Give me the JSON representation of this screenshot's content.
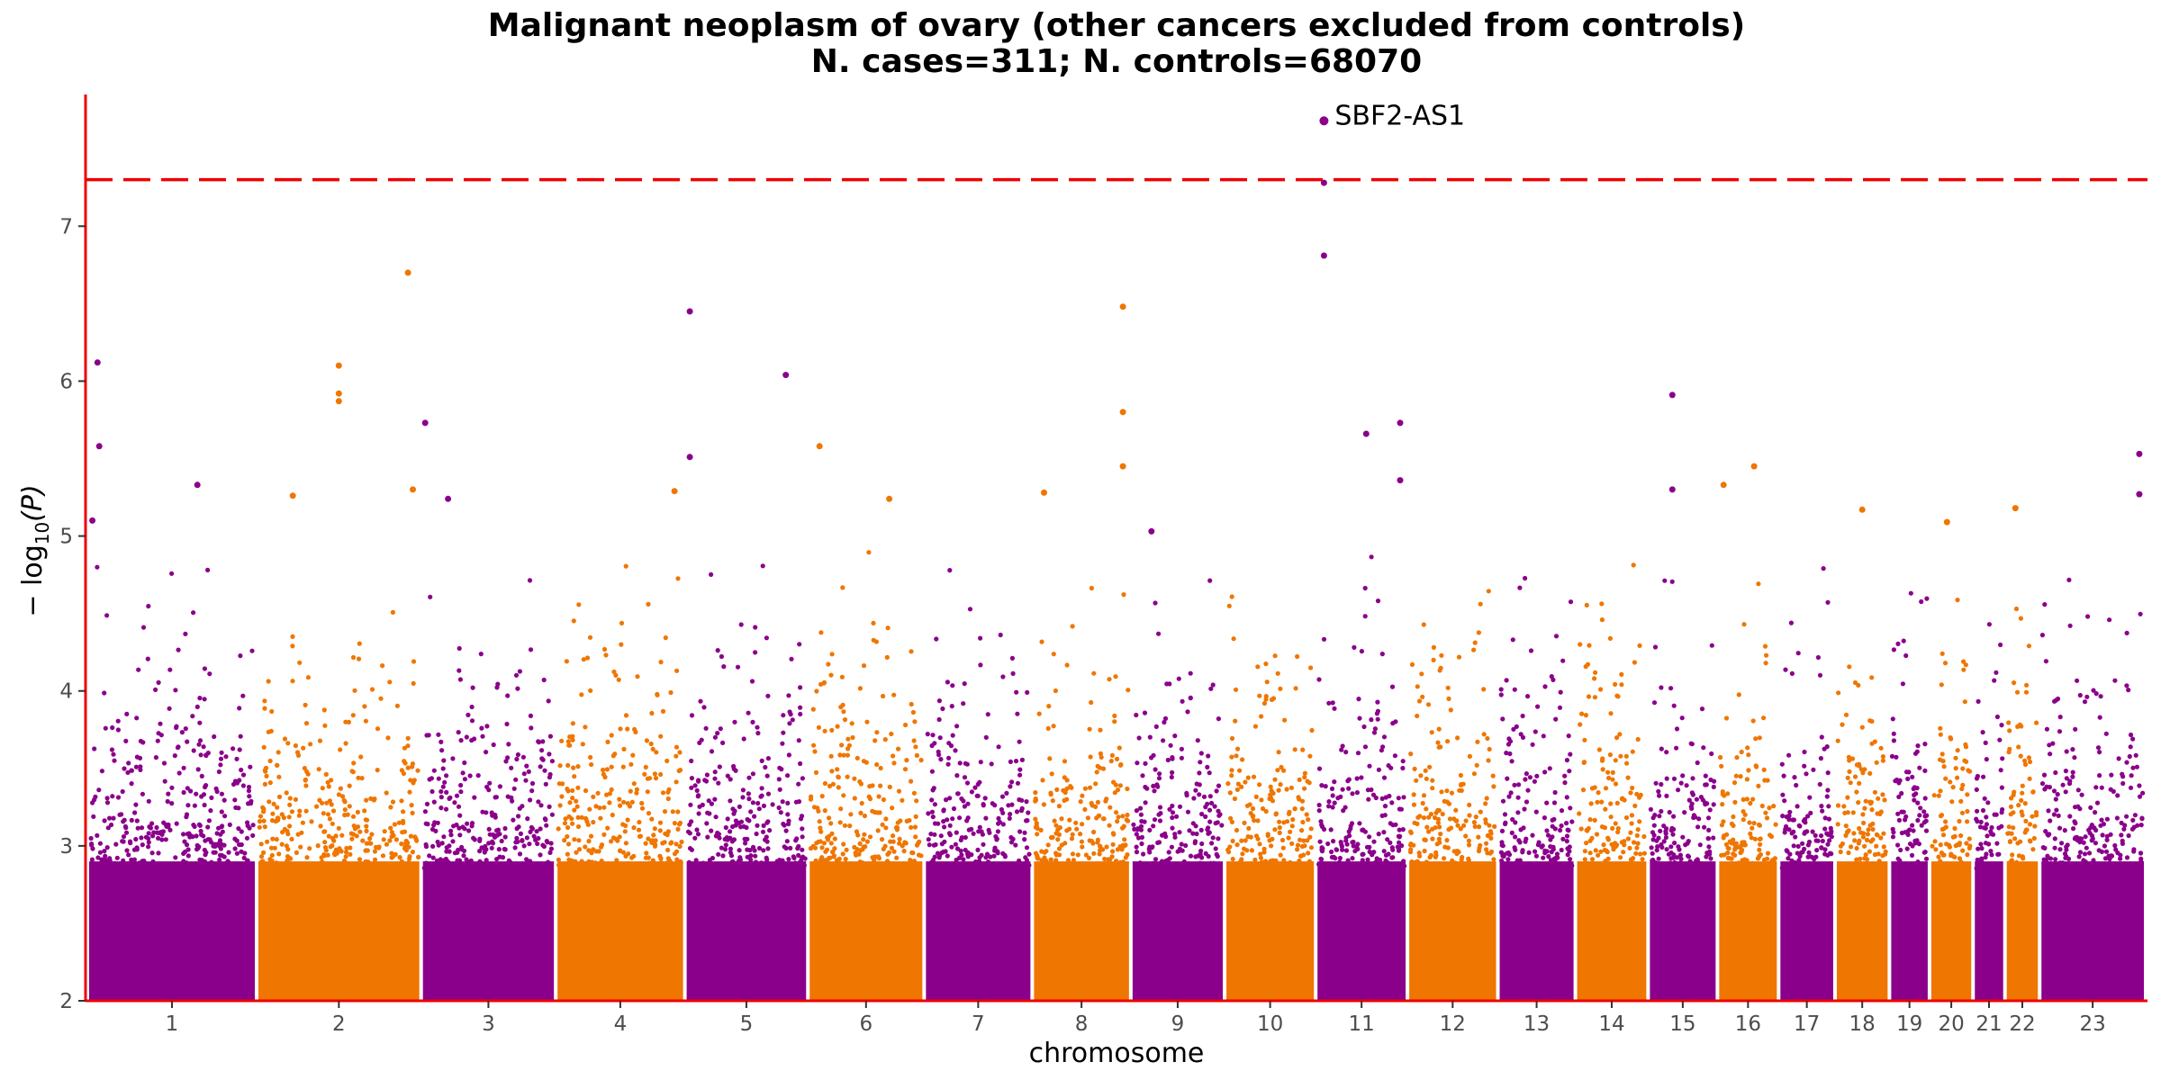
{
  "chart_data": {
    "type": "scatter",
    "subtype": "manhattan",
    "title": "Malignant neoplasm of ovary (other cancers excluded from controls)",
    "subtitle": "N. cases=311; N. controls=68070",
    "xlabel": "chromosome",
    "ylabel_main": "− log",
    "ylabel_sub": "10",
    "ylabel_var": "(P)",
    "ylim": [
      2,
      7.85
    ],
    "yticks": [
      2,
      3,
      4,
      5,
      6,
      7
    ],
    "significance_line": 7.3,
    "grid": false,
    "colors": {
      "odd": "#8b008b",
      "even": "#ef7600",
      "line": "#ee0000",
      "axis": "#ee0000"
    },
    "chromosomes": [
      {
        "label": "1",
        "length": 249
      },
      {
        "label": "2",
        "length": 242
      },
      {
        "label": "3",
        "length": 198
      },
      {
        "label": "4",
        "length": 190
      },
      {
        "label": "5",
        "length": 181
      },
      {
        "label": "6",
        "length": 171
      },
      {
        "label": "7",
        "length": 159
      },
      {
        "label": "8",
        "length": 145
      },
      {
        "label": "9",
        "length": 138
      },
      {
        "label": "10",
        "length": 134
      },
      {
        "label": "11",
        "length": 135
      },
      {
        "label": "12",
        "length": 133
      },
      {
        "label": "13",
        "length": 114
      },
      {
        "label": "14",
        "length": 107
      },
      {
        "label": "15",
        "length": 102
      },
      {
        "label": "16",
        "length": 90
      },
      {
        "label": "17",
        "length": 83
      },
      {
        "label": "18",
        "length": 80
      },
      {
        "label": "19",
        "length": 59
      },
      {
        "label": "20",
        "length": 64
      },
      {
        "label": "21",
        "length": 47
      },
      {
        "label": "22",
        "length": 51
      },
      {
        "label": "23",
        "length": 156
      }
    ],
    "top_hits": [
      {
        "chr": "1",
        "pos": 0.06,
        "p": 6.12
      },
      {
        "chr": "1",
        "pos": 0.07,
        "p": 5.58
      },
      {
        "chr": "1",
        "pos": 0.03,
        "p": 5.1
      },
      {
        "chr": "1",
        "pos": 0.65,
        "p": 5.33
      },
      {
        "chr": "2",
        "pos": 0.5,
        "p": 6.1
      },
      {
        "chr": "2",
        "pos": 0.5,
        "p": 5.92
      },
      {
        "chr": "2",
        "pos": 0.5,
        "p": 5.87
      },
      {
        "chr": "2",
        "pos": 0.22,
        "p": 5.26
      },
      {
        "chr": "2",
        "pos": 0.92,
        "p": 6.7
      },
      {
        "chr": "2",
        "pos": 0.95,
        "p": 5.3
      },
      {
        "chr": "3",
        "pos": 0.03,
        "p": 5.73
      },
      {
        "chr": "3",
        "pos": 0.2,
        "p": 5.24
      },
      {
        "chr": "4",
        "pos": 0.92,
        "p": 5.29
      },
      {
        "chr": "5",
        "pos": 0.04,
        "p": 6.45
      },
      {
        "chr": "5",
        "pos": 0.04,
        "p": 5.51
      },
      {
        "chr": "5",
        "pos": 0.82,
        "p": 6.04
      },
      {
        "chr": "6",
        "pos": 0.1,
        "p": 5.58
      },
      {
        "chr": "6",
        "pos": 0.7,
        "p": 5.24
      },
      {
        "chr": "8",
        "pos": 0.12,
        "p": 5.28
      },
      {
        "chr": "8",
        "pos": 0.92,
        "p": 6.48
      },
      {
        "chr": "8",
        "pos": 0.92,
        "p": 5.8
      },
      {
        "chr": "8",
        "pos": 0.92,
        "p": 5.45
      },
      {
        "chr": "9",
        "pos": 0.22,
        "p": 5.03
      },
      {
        "chr": "11",
        "pos": 0.09,
        "p": 7.68
      },
      {
        "chr": "11",
        "pos": 0.09,
        "p": 7.28
      },
      {
        "chr": "11",
        "pos": 0.09,
        "p": 6.81
      },
      {
        "chr": "11",
        "pos": 0.55,
        "p": 5.66
      },
      {
        "chr": "11",
        "pos": 0.92,
        "p": 5.73
      },
      {
        "chr": "11",
        "pos": 0.92,
        "p": 5.36
      },
      {
        "chr": "15",
        "pos": 0.35,
        "p": 5.91
      },
      {
        "chr": "15",
        "pos": 0.35,
        "p": 5.3
      },
      {
        "chr": "16",
        "pos": 0.6,
        "p": 5.45
      },
      {
        "chr": "16",
        "pos": 0.1,
        "p": 5.33
      },
      {
        "chr": "18",
        "pos": 0.5,
        "p": 5.17
      },
      {
        "chr": "20",
        "pos": 0.4,
        "p": 5.09
      },
      {
        "chr": "22",
        "pos": 0.3,
        "p": 5.18
      },
      {
        "chr": "23",
        "pos": 0.94,
        "p": 5.53
      },
      {
        "chr": "23",
        "pos": 0.94,
        "p": 5.27
      }
    ],
    "annotations": [
      {
        "label": "SBF2-AS1",
        "chr": "11",
        "pos": 0.09,
        "p": 7.68
      }
    ]
  }
}
